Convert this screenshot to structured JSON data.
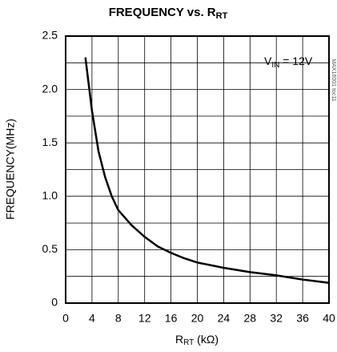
{
  "chart_data": {
    "type": "line",
    "title": "FREQUENCY vs. R",
    "title_subscript": "RT",
    "x_label": "R",
    "x_label_subscript": "RT",
    "x_label_unit": " (kΩ)",
    "y_label": "FREQUENCY(MHz)",
    "annotation": "V",
    "annotation_subscript": "IN",
    "annotation_rest": " = 12V",
    "side_note": "MAX16001 toc11",
    "x": [
      3,
      4,
      5,
      6,
      7,
      8,
      10,
      12,
      14,
      16,
      18,
      20,
      24,
      28,
      32,
      36,
      40
    ],
    "series": [
      {
        "name": "VIN = 12V",
        "color": "#000000",
        "values": [
          2.3,
          1.8,
          1.42,
          1.18,
          1.0,
          0.87,
          0.73,
          0.62,
          0.53,
          0.47,
          0.42,
          0.38,
          0.33,
          0.29,
          0.26,
          0.22,
          0.19
        ]
      }
    ],
    "xlim": [
      0,
      40
    ],
    "xticks": [
      0,
      4,
      8,
      12,
      16,
      20,
      24,
      28,
      32,
      36,
      40
    ],
    "ylim": [
      0,
      2.5
    ],
    "yticks": [
      0,
      0.5,
      {
        "value": 1,
        "label": "1.0"
      },
      1.5,
      {
        "value": 2,
        "label": "2.0"
      },
      2.5
    ],
    "yminor_grid": [
      0.25,
      0.75,
      1.25,
      1.75,
      2.25
    ],
    "grid": true
  }
}
